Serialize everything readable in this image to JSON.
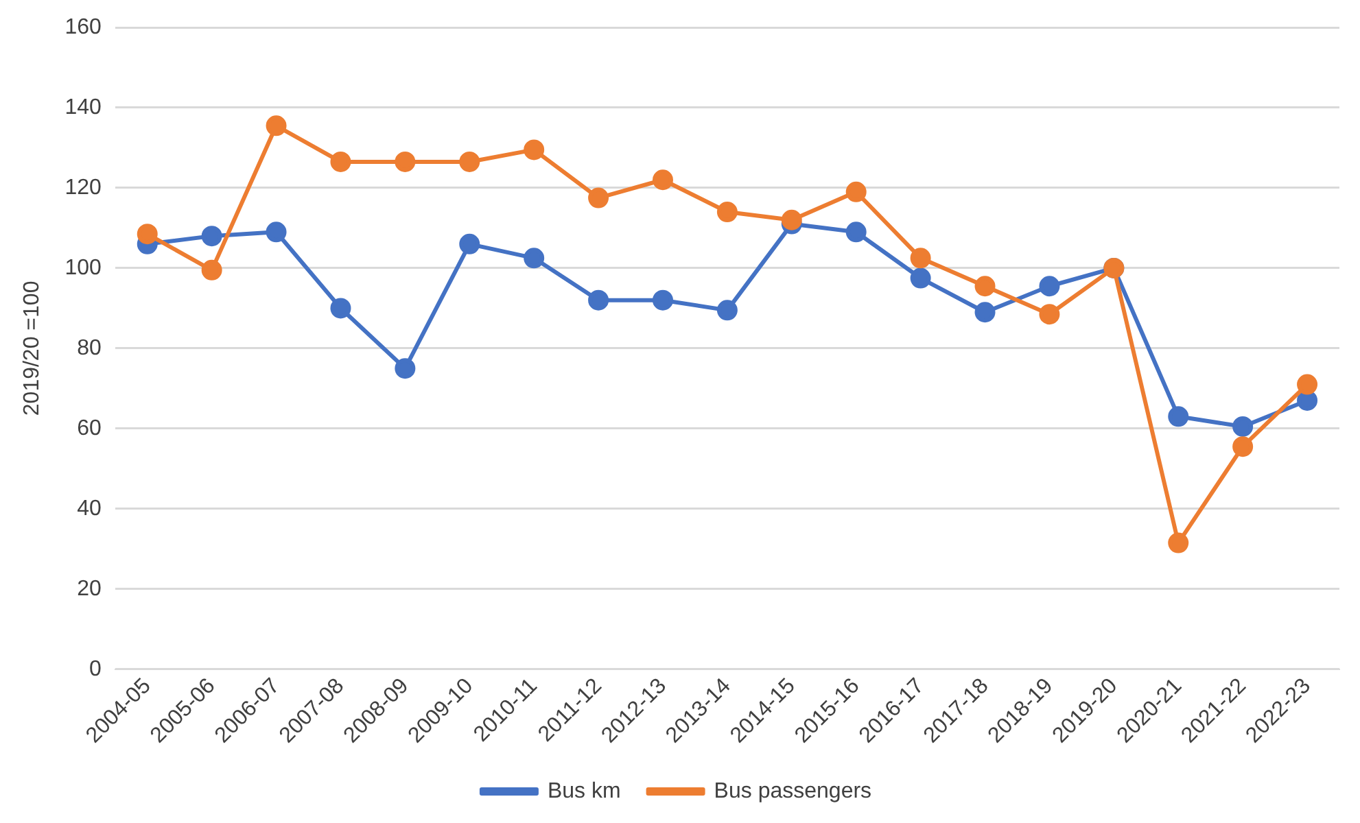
{
  "chart_data": {
    "type": "line",
    "ylabel": "2019/20 =100",
    "categories": [
      "2004-05",
      "2005-06",
      "2006-07",
      "2007-08",
      "2008-09",
      "2009-10",
      "2010-11",
      "2011-12",
      "2012-13",
      "2013-14",
      "2014-15",
      "2015-16",
      "2016-17",
      "2017-18",
      "2018-19",
      "2019-20",
      "2020-21",
      "2021-22",
      "2022-23"
    ],
    "series": [
      {
        "name": "Bus km",
        "color": "#4472c4",
        "values": [
          106,
          108,
          109,
          90,
          75,
          106,
          102.5,
          92,
          92,
          89.5,
          111,
          109,
          97.5,
          89,
          95.5,
          100,
          63,
          60.5,
          67
        ]
      },
      {
        "name": "Bus passengers",
        "color": "#ed7d31",
        "values": [
          108.5,
          99.5,
          135.5,
          126.5,
          126.5,
          126.5,
          129.5,
          117.5,
          122,
          114,
          112,
          119,
          102.5,
          95.5,
          88.5,
          100,
          31.5,
          55.5,
          71
        ]
      }
    ],
    "ylim": [
      0,
      160
    ],
    "yticks": [
      0,
      20,
      40,
      60,
      80,
      100,
      120,
      140,
      160
    ],
    "grid": "y",
    "legend": "bottom",
    "marker": "circle",
    "line_style": "solid"
  }
}
